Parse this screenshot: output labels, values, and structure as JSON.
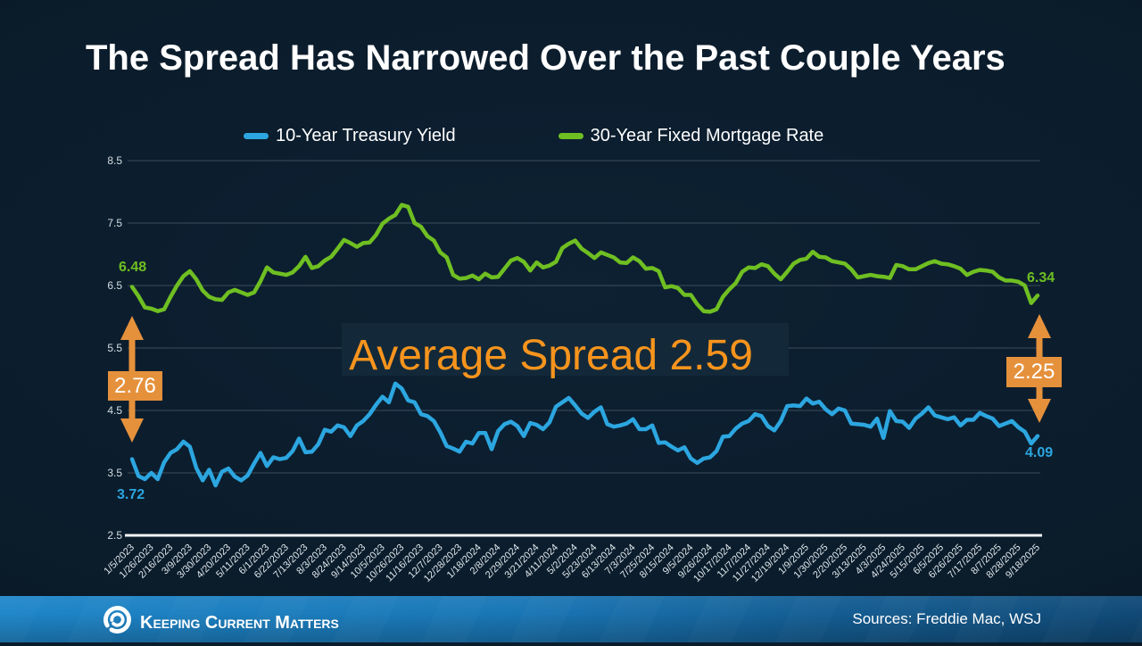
{
  "title": "The Spread Has Narrowed Over the Past Couple Years",
  "chart_data": {
    "type": "line",
    "title": "The Spread Has Narrowed Over the Past Couple Years",
    "ylim": [
      2.5,
      8.5
    ],
    "yticks": [
      "8.5",
      "7.5",
      "6.5",
      "5.5",
      "4.5",
      "3.5",
      "2.5"
    ],
    "grid": "horizontal",
    "legend_position": "top-center",
    "x_labels": [
      "1/5/2023",
      "1/26/2023",
      "2/16/2023",
      "3/9/2023",
      "3/30/2023",
      "4/20/2023",
      "5/11/2023",
      "6/1/2023",
      "6/22/2023",
      "7/13/2023",
      "8/3/2023",
      "8/24/2023",
      "9/14/2023",
      "10/5/2023",
      "10/26/2023",
      "11/16/2023",
      "12/7/2023",
      "12/28/2023",
      "1/18/2024",
      "2/8/2024",
      "2/29/2024",
      "3/21/2024",
      "4/11/2024",
      "5/2/2024",
      "5/23/2024",
      "6/13/2024",
      "7/3/2024",
      "7/25/2024",
      "8/15/2024",
      "9/5/2024",
      "9/26/2024",
      "10/17/2024",
      "11/7/2024",
      "11/27/2024",
      "12/19/2024",
      "1/9/2025",
      "1/30/2025",
      "2/20/2025",
      "3/13/2025",
      "4/3/2025",
      "4/24/2025",
      "5/15/2025",
      "6/5/2025",
      "6/26/2025",
      "7/17/2025",
      "8/7/2025",
      "8/28/2025",
      "9/18/2025"
    ],
    "x_label_every_n_points": 3,
    "series": [
      {
        "name": "30-Year Fixed Mortgage Rate",
        "color": "#6fbf22",
        "values": [
          6.48,
          6.33,
          6.15,
          6.13,
          6.09,
          6.12,
          6.32,
          6.5,
          6.65,
          6.73,
          6.6,
          6.42,
          6.32,
          6.28,
          6.27,
          6.39,
          6.43,
          6.39,
          6.35,
          6.39,
          6.57,
          6.79,
          6.71,
          6.69,
          6.67,
          6.71,
          6.81,
          6.96,
          6.78,
          6.81,
          6.9,
          6.96,
          7.09,
          7.23,
          7.18,
          7.12,
          7.18,
          7.19,
          7.31,
          7.49,
          7.57,
          7.63,
          7.79,
          7.76,
          7.5,
          7.44,
          7.29,
          7.22,
          7.03,
          6.95,
          6.67,
          6.61,
          6.62,
          6.66,
          6.6,
          6.69,
          6.63,
          6.64,
          6.77,
          6.9,
          6.94,
          6.88,
          6.74,
          6.87,
          6.79,
          6.82,
          6.88,
          7.1,
          7.17,
          7.22,
          7.09,
          7.02,
          6.94,
          7.03,
          6.99,
          6.95,
          6.87,
          6.86,
          6.95,
          6.89,
          6.77,
          6.78,
          6.73,
          6.47,
          6.49,
          6.46,
          6.35,
          6.35,
          6.2,
          6.09,
          6.08,
          6.12,
          6.32,
          6.44,
          6.54,
          6.72,
          6.79,
          6.78,
          6.84,
          6.81,
          6.69,
          6.6,
          6.72,
          6.85,
          6.91,
          6.93,
          7.04,
          6.96,
          6.95,
          6.89,
          6.87,
          6.85,
          6.76,
          6.63,
          6.65,
          6.67,
          6.65,
          6.64,
          6.62,
          6.83,
          6.81,
          6.76,
          6.76,
          6.81,
          6.86,
          6.89,
          6.85,
          6.84,
          6.81,
          6.77,
          6.67,
          6.72,
          6.75,
          6.74,
          6.72,
          6.63,
          6.58,
          6.58,
          6.56,
          6.5,
          6.22,
          6.34
        ]
      },
      {
        "name": "10-Year Treasury Yield",
        "color": "#2ca6e0",
        "values": [
          3.72,
          3.45,
          3.4,
          3.5,
          3.4,
          3.67,
          3.82,
          3.88,
          4.0,
          3.92,
          3.58,
          3.38,
          3.55,
          3.3,
          3.52,
          3.57,
          3.44,
          3.38,
          3.46,
          3.65,
          3.82,
          3.61,
          3.75,
          3.72,
          3.74,
          3.85,
          4.05,
          3.83,
          3.84,
          3.96,
          4.19,
          4.16,
          4.26,
          4.23,
          4.09,
          4.26,
          4.33,
          4.44,
          4.59,
          4.72,
          4.63,
          4.93,
          4.85,
          4.66,
          4.63,
          4.44,
          4.41,
          4.33,
          4.15,
          3.93,
          3.89,
          3.84,
          4.0,
          3.97,
          4.14,
          4.14,
          3.88,
          4.17,
          4.28,
          4.32,
          4.25,
          4.09,
          4.3,
          4.27,
          4.2,
          4.31,
          4.56,
          4.63,
          4.7,
          4.58,
          4.45,
          4.38,
          4.48,
          4.55,
          4.28,
          4.24,
          4.26,
          4.29,
          4.36,
          4.2,
          4.2,
          4.26,
          3.98,
          3.99,
          3.92,
          3.86,
          3.91,
          3.73,
          3.66,
          3.73,
          3.75,
          3.85,
          4.08,
          4.09,
          4.21,
          4.29,
          4.33,
          4.44,
          4.41,
          4.25,
          4.18,
          4.33,
          4.57,
          4.58,
          4.57,
          4.69,
          4.61,
          4.64,
          4.52,
          4.44,
          4.53,
          4.5,
          4.29,
          4.28,
          4.27,
          4.24,
          4.37,
          4.06,
          4.49,
          4.33,
          4.32,
          4.22,
          4.37,
          4.45,
          4.55,
          4.42,
          4.39,
          4.36,
          4.39,
          4.26,
          4.35,
          4.35,
          4.46,
          4.41,
          4.37,
          4.25,
          4.29,
          4.33,
          4.23,
          4.16,
          3.97,
          4.09
        ]
      }
    ],
    "annotations": {
      "start_mortgage": "6.48",
      "start_treasury": "3.72",
      "end_mortgage": "6.34",
      "end_treasury": "4.09",
      "average_spread_label": "Average Spread 2.59",
      "spread_left": "2.76",
      "spread_right": "2.25"
    }
  },
  "legend": {
    "treasury_label": "10-Year Treasury Yield",
    "mortgage_label": "30-Year Fixed Mortgage Rate"
  },
  "colors": {
    "treasury_blue": "#2ca6e0",
    "mortgage_green": "#6fbf22",
    "annotation_orange": "#f7941d",
    "arrow_orange": "#e5913c",
    "background_navy": "#0b1c2b",
    "footer_blue": "#1a74b2"
  },
  "footer": {
    "brand": "Keeping Current Matters",
    "sources": "Sources: Freddie Mac, WSJ"
  }
}
